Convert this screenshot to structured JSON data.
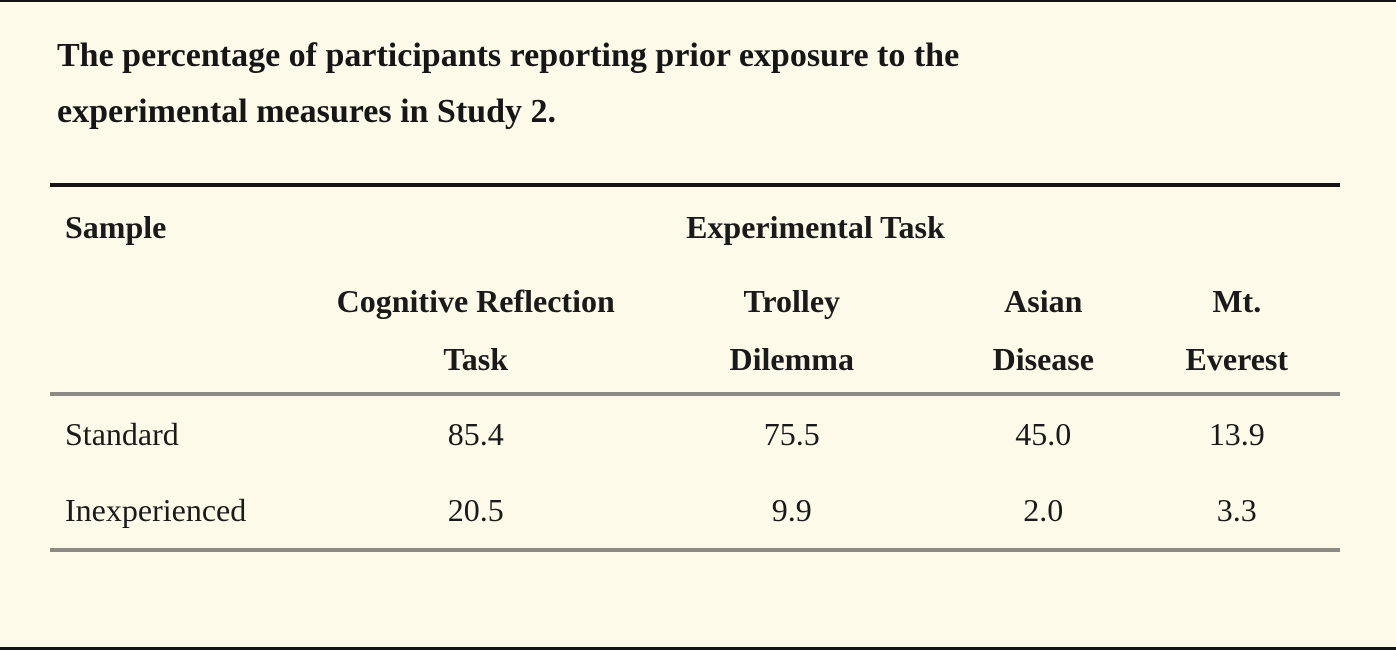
{
  "page": {
    "background_color": "#FDFAE9",
    "text_color": "#1a1a1a",
    "top_rule_color": "#151515",
    "inner_rule_color": "#8c8a84"
  },
  "header": {
    "title": "The percentage of participants reporting prior exposure to the experimental measures in Study 2.",
    "title_lines": [
      "The percentage of participants reporting prior exposure to the",
      "experimental measures in Study 2."
    ]
  },
  "table": {
    "corner_header": "Sample",
    "spanner_header": "Experimental Task",
    "columns": [
      {
        "label": "Cognitive Reflection Task",
        "line1": "Cognitive Reflection",
        "line2": "Task"
      },
      {
        "label": "Trolley Dilemma",
        "line1": "Trolley",
        "line2": "Dilemma"
      },
      {
        "label": "Asian Disease",
        "line1": "Asian",
        "line2": "Disease"
      },
      {
        "label": "Mt. Everest",
        "line1": "Mt.",
        "line2": "Everest"
      }
    ],
    "rows": [
      {
        "label": "Standard",
        "values": [
          "85.4",
          "75.5",
          "45.0",
          "13.9"
        ]
      },
      {
        "label": "Inexperienced",
        "values": [
          "20.5",
          "9.9",
          "2.0",
          "3.3"
        ]
      }
    ]
  },
  "chart_data": {
    "type": "table",
    "title": "The percentage of participants reporting prior exposure to the experimental measures in Study 2.",
    "row_header": "Sample",
    "column_group_header": "Experimental Task",
    "categories": [
      "Cognitive Reflection Task",
      "Trolley Dilemma",
      "Asian Disease",
      "Mt. Everest"
    ],
    "series": [
      {
        "name": "Standard",
        "values": [
          85.4,
          75.5,
          45.0,
          13.9
        ]
      },
      {
        "name": "Inexperienced",
        "values": [
          20.5,
          9.9,
          2.0,
          3.3
        ]
      }
    ],
    "units": "percent"
  }
}
